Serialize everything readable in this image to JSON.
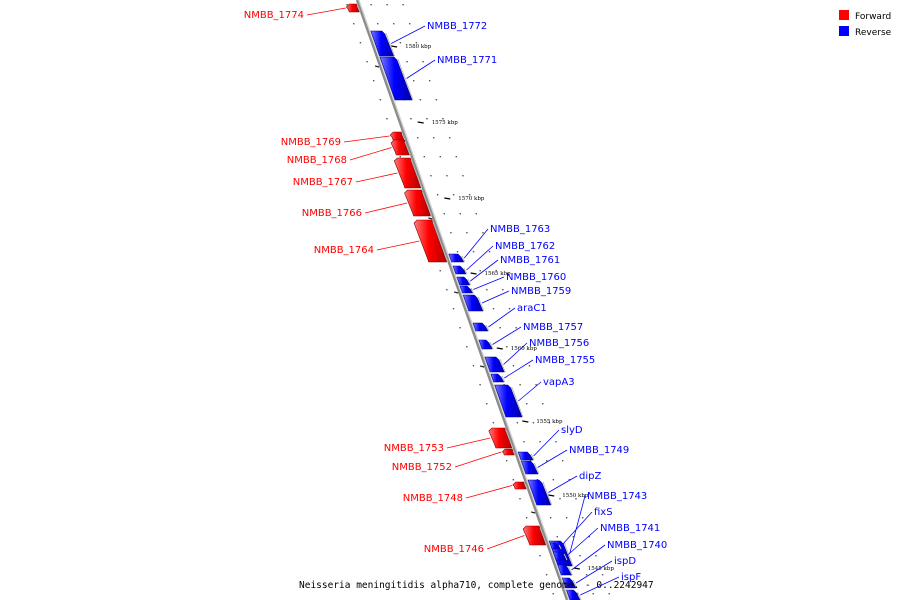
{
  "caption": "Neisseria meningitidis alpha710, complete genome. - 0..2242947",
  "legend": [
    {
      "label": "Forward",
      "color": "#ff0000"
    },
    {
      "label": "Reverse",
      "color": "#0000ff"
    }
  ],
  "colors": {
    "forward": "#ff0000",
    "reverse": "#0000ff",
    "backbone": "#999999"
  },
  "ticks": [
    "1580 kbp",
    "1575 kbp",
    "1570 kbp",
    "1565 kbp",
    "1560 kbp",
    "1555 kbp",
    "1550 kbp",
    "1545 kbp"
  ],
  "genes_forward": [
    "NMBB_1774",
    "NMBB_1769",
    "NMBB_1768",
    "NMBB_1767",
    "NMBB_1766",
    "NMBB_1764",
    "NMBB_1753",
    "NMBB_1752",
    "NMBB_1748",
    "NMBB_1746"
  ],
  "genes_reverse": [
    "NMBB_1772",
    "NMBB_1771",
    "NMBB_1763",
    "NMBB_1762",
    "NMBB_1761",
    "NMBB_1760",
    "NMBB_1759",
    "araC1",
    "NMBB_1757",
    "NMBB_1756",
    "NMBB_1755",
    "vapA3",
    "slyD",
    "NMBB_1749",
    "dipZ",
    "NMBB_1743",
    "fixS",
    "NMBB_1741",
    "NMBB_1740",
    "ispD",
    "ispF"
  ]
}
